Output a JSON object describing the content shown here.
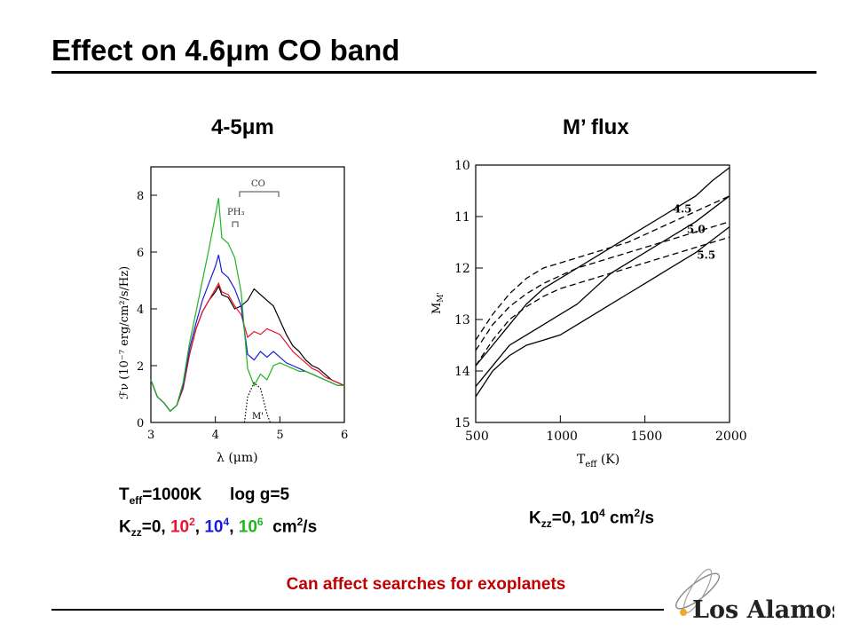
{
  "page": {
    "title_prefix": "Effect on 4.6",
    "title_mu": "μ",
    "title_suffix": "m CO band",
    "logo_text": "Los Alamos",
    "note": "Can affect searches for exoplanets"
  },
  "left_caption": {
    "line1": [
      {
        "t": "T",
        "c": "#000000"
      },
      {
        "t": "eff",
        "c": "#000000",
        "sub": true
      },
      {
        "t": "=1000K      log g=5",
        "c": "#000000"
      }
    ],
    "line2": [
      {
        "t": "K",
        "c": "#000000"
      },
      {
        "t": "zz",
        "c": "#000000",
        "sub": true
      },
      {
        "t": "=0, ",
        "c": "#000000"
      },
      {
        "t": "10",
        "c": "#e8152c"
      },
      {
        "t": "2",
        "c": "#e8152c",
        "sup": true
      },
      {
        "t": ", ",
        "c": "#000000"
      },
      {
        "t": "10",
        "c": "#1a1adc"
      },
      {
        "t": "4",
        "c": "#1a1adc",
        "sup": true
      },
      {
        "t": ", ",
        "c": "#000000"
      },
      {
        "t": "10",
        "c": "#1fb51f"
      },
      {
        "t": "6",
        "c": "#1fb51f",
        "sup": true
      },
      {
        "t": "  cm",
        "c": "#000000"
      },
      {
        "t": "2",
        "c": "#000000",
        "sup": true
      },
      {
        "t": "/s",
        "c": "#000000"
      }
    ]
  },
  "right_caption": {
    "line1": [
      {
        "t": "K",
        "c": "#000000"
      },
      {
        "t": "zz",
        "c": "#000000",
        "sub": true
      },
      {
        "t": "=0, 10",
        "c": "#000000"
      },
      {
        "t": "4",
        "c": "#000000",
        "sup": true
      },
      {
        "t": " cm",
        "c": "#000000"
      },
      {
        "t": "2",
        "c": "#000000",
        "sup": true
      },
      {
        "t": "/s",
        "c": "#000000"
      }
    ]
  },
  "chart_data": [
    {
      "type": "line",
      "title_prefix": "4-5",
      "title_mu": "μ",
      "title_suffix": "m",
      "xlabel": "λ (μm)",
      "ylabel": "ℱν (10⁻⁷ erg/cm²/s/Hz)",
      "xlim": [
        3,
        6
      ],
      "ylim": [
        0,
        9
      ],
      "xticks": [
        3,
        4,
        5,
        6
      ],
      "yticks": [
        0,
        2,
        4,
        6,
        8
      ],
      "grid": false,
      "annotations": [
        "CO",
        "PH₃",
        "M'"
      ],
      "series": [
        {
          "color": "#000000",
          "points": [
            [
              3.0,
              1.5
            ],
            [
              3.1,
              0.9
            ],
            [
              3.2,
              0.7
            ],
            [
              3.3,
              0.4
            ],
            [
              3.4,
              0.6
            ],
            [
              3.5,
              1.2
            ],
            [
              3.6,
              2.4
            ],
            [
              3.7,
              3.3
            ],
            [
              3.8,
              3.9
            ],
            [
              3.9,
              4.3
            ],
            [
              4.0,
              4.6
            ],
            [
              4.05,
              4.8
            ],
            [
              4.1,
              4.5
            ],
            [
              4.2,
              4.4
            ],
            [
              4.3,
              4.0
            ],
            [
              4.4,
              4.1
            ],
            [
              4.5,
              4.3
            ],
            [
              4.6,
              4.7
            ],
            [
              4.7,
              4.5
            ],
            [
              4.8,
              4.3
            ],
            [
              4.9,
              4.1
            ],
            [
              5.0,
              3.6
            ],
            [
              5.1,
              3.1
            ],
            [
              5.2,
              2.7
            ],
            [
              5.3,
              2.5
            ],
            [
              5.4,
              2.2
            ],
            [
              5.5,
              2.0
            ],
            [
              5.6,
              1.9
            ],
            [
              5.7,
              1.7
            ],
            [
              5.8,
              1.5
            ],
            [
              5.9,
              1.4
            ],
            [
              6.0,
              1.3
            ]
          ]
        },
        {
          "color": "#e8152c",
          "points": [
            [
              3.0,
              1.5
            ],
            [
              3.1,
              0.9
            ],
            [
              3.2,
              0.7
            ],
            [
              3.3,
              0.4
            ],
            [
              3.4,
              0.6
            ],
            [
              3.5,
              1.2
            ],
            [
              3.6,
              2.4
            ],
            [
              3.7,
              3.3
            ],
            [
              3.8,
              3.9
            ],
            [
              3.9,
              4.3
            ],
            [
              4.0,
              4.7
            ],
            [
              4.05,
              4.9
            ],
            [
              4.1,
              4.6
            ],
            [
              4.2,
              4.5
            ],
            [
              4.3,
              4.1
            ],
            [
              4.4,
              3.8
            ],
            [
              4.5,
              3.0
            ],
            [
              4.6,
              3.2
            ],
            [
              4.7,
              3.1
            ],
            [
              4.8,
              3.3
            ],
            [
              4.9,
              3.2
            ],
            [
              5.0,
              3.1
            ],
            [
              5.1,
              2.8
            ],
            [
              5.2,
              2.5
            ],
            [
              5.3,
              2.3
            ],
            [
              5.4,
              2.1
            ],
            [
              5.5,
              1.9
            ],
            [
              5.6,
              1.8
            ],
            [
              5.7,
              1.6
            ],
            [
              5.8,
              1.5
            ],
            [
              5.9,
              1.4
            ],
            [
              6.0,
              1.3
            ]
          ]
        },
        {
          "color": "#1a1adc",
          "points": [
            [
              3.0,
              1.5
            ],
            [
              3.1,
              0.9
            ],
            [
              3.2,
              0.7
            ],
            [
              3.3,
              0.4
            ],
            [
              3.4,
              0.6
            ],
            [
              3.5,
              1.3
            ],
            [
              3.6,
              2.6
            ],
            [
              3.7,
              3.5
            ],
            [
              3.8,
              4.3
            ],
            [
              3.9,
              4.9
            ],
            [
              4.0,
              5.5
            ],
            [
              4.05,
              5.9
            ],
            [
              4.1,
              5.3
            ],
            [
              4.2,
              5.1
            ],
            [
              4.3,
              4.7
            ],
            [
              4.4,
              4.1
            ],
            [
              4.5,
              2.4
            ],
            [
              4.6,
              2.2
            ],
            [
              4.7,
              2.5
            ],
            [
              4.8,
              2.3
            ],
            [
              4.9,
              2.5
            ],
            [
              5.0,
              2.3
            ],
            [
              5.1,
              2.1
            ],
            [
              5.2,
              2.0
            ],
            [
              5.3,
              1.9
            ],
            [
              5.4,
              1.8
            ],
            [
              5.5,
              1.7
            ],
            [
              5.6,
              1.6
            ],
            [
              5.7,
              1.5
            ],
            [
              5.8,
              1.4
            ],
            [
              5.9,
              1.3
            ],
            [
              6.0,
              1.3
            ]
          ]
        },
        {
          "color": "#1fb51f",
          "points": [
            [
              3.0,
              1.5
            ],
            [
              3.1,
              0.9
            ],
            [
              3.2,
              0.7
            ],
            [
              3.3,
              0.4
            ],
            [
              3.4,
              0.6
            ],
            [
              3.5,
              1.4
            ],
            [
              3.6,
              2.8
            ],
            [
              3.7,
              3.9
            ],
            [
              3.8,
              5.0
            ],
            [
              3.9,
              6.1
            ],
            [
              4.0,
              7.3
            ],
            [
              4.05,
              7.9
            ],
            [
              4.1,
              6.5
            ],
            [
              4.2,
              6.3
            ],
            [
              4.3,
              5.8
            ],
            [
              4.4,
              4.6
            ],
            [
              4.5,
              1.9
            ],
            [
              4.6,
              1.3
            ],
            [
              4.7,
              1.7
            ],
            [
              4.8,
              1.5
            ],
            [
              4.9,
              2.0
            ],
            [
              5.0,
              2.1
            ],
            [
              5.1,
              2.0
            ],
            [
              5.2,
              1.9
            ],
            [
              5.3,
              1.8
            ],
            [
              5.4,
              1.8
            ],
            [
              5.5,
              1.7
            ],
            [
              5.6,
              1.6
            ],
            [
              5.7,
              1.5
            ],
            [
              5.8,
              1.4
            ],
            [
              5.9,
              1.3
            ],
            [
              6.0,
              1.3
            ]
          ]
        },
        {
          "color": "#000000",
          "dash": "dotted",
          "points": [
            [
              4.45,
              0
            ],
            [
              4.5,
              0.9
            ],
            [
              4.6,
              1.4
            ],
            [
              4.7,
              1.2
            ],
            [
              4.8,
              0.3
            ],
            [
              4.85,
              0
            ]
          ]
        }
      ]
    },
    {
      "type": "line",
      "title": "M’ flux",
      "xlabel": "T",
      "xlabel_sub": "eff",
      "xlabel_suffix": " (K)",
      "ylabel": "M",
      "ylabel_sub": "M'",
      "xlim": [
        500,
        2000
      ],
      "ylim": [
        15,
        10
      ],
      "xticks": [
        500,
        1000,
        1500,
        2000
      ],
      "yticks": [
        10,
        11,
        12,
        13,
        14,
        15
      ],
      "grid": false,
      "annotations": [
        {
          "text": "4.5",
          "x": 1720,
          "y": 10.85
        },
        {
          "text": "5.0",
          "x": 1800,
          "y": 11.25
        },
        {
          "text": "5.5",
          "x": 1860,
          "y": 11.75
        }
      ],
      "series": [
        {
          "name": "4.5",
          "dash": "solid",
          "points": [
            [
              500,
              13.9
            ],
            [
              600,
              13.5
            ],
            [
              700,
              13.1
            ],
            [
              800,
              12.7
            ],
            [
              900,
              12.4
            ],
            [
              1000,
              12.2
            ],
            [
              1100,
              12.0
            ],
            [
              1200,
              11.8
            ],
            [
              1300,
              11.6
            ],
            [
              1400,
              11.4
            ],
            [
              1500,
              11.2
            ],
            [
              1600,
              11.0
            ],
            [
              1700,
              10.8
            ],
            [
              1800,
              10.6
            ],
            [
              1900,
              10.3
            ],
            [
              2000,
              10.05
            ]
          ]
        },
        {
          "name": "5.0",
          "dash": "solid",
          "points": [
            [
              500,
              14.3
            ],
            [
              600,
              13.9
            ],
            [
              700,
              13.5
            ],
            [
              800,
              13.3
            ],
            [
              900,
              13.1
            ],
            [
              1000,
              12.9
            ],
            [
              1100,
              12.7
            ],
            [
              1200,
              12.4
            ],
            [
              1300,
              12.1
            ],
            [
              1400,
              11.9
            ],
            [
              1500,
              11.7
            ],
            [
              1600,
              11.5
            ],
            [
              1700,
              11.3
            ],
            [
              1800,
              11.1
            ],
            [
              1900,
              10.85
            ],
            [
              2000,
              10.6
            ]
          ]
        },
        {
          "name": "5.5",
          "dash": "solid",
          "points": [
            [
              500,
              14.5
            ],
            [
              600,
              14.0
            ],
            [
              700,
              13.7
            ],
            [
              800,
              13.5
            ],
            [
              900,
              13.4
            ],
            [
              1000,
              13.3
            ],
            [
              1100,
              13.1
            ],
            [
              1200,
              12.9
            ],
            [
              1300,
              12.7
            ],
            [
              1400,
              12.5
            ],
            [
              1500,
              12.3
            ],
            [
              1600,
              12.1
            ],
            [
              1700,
              11.9
            ],
            [
              1800,
              11.7
            ],
            [
              1900,
              11.45
            ],
            [
              2000,
              11.2
            ]
          ]
        },
        {
          "name": "4.5",
          "dash": "dashed",
          "points": [
            [
              500,
              13.4
            ],
            [
              600,
              12.9
            ],
            [
              700,
              12.5
            ],
            [
              800,
              12.2
            ],
            [
              900,
              12.0
            ],
            [
              1000,
              11.9
            ],
            [
              1100,
              11.8
            ],
            [
              1200,
              11.7
            ],
            [
              1300,
              11.6
            ],
            [
              1400,
              11.5
            ],
            [
              1500,
              11.35
            ],
            [
              1600,
              11.2
            ],
            [
              1700,
              11.05
            ],
            [
              1800,
              10.9
            ],
            [
              1900,
              10.75
            ],
            [
              2000,
              10.6
            ]
          ]
        },
        {
          "name": "5.0",
          "dash": "dashed",
          "points": [
            [
              500,
              13.6
            ],
            [
              600,
              13.1
            ],
            [
              700,
              12.75
            ],
            [
              800,
              12.5
            ],
            [
              900,
              12.3
            ],
            [
              1000,
              12.15
            ],
            [
              1100,
              12.0
            ],
            [
              1200,
              11.9
            ],
            [
              1300,
              11.8
            ],
            [
              1400,
              11.7
            ],
            [
              1500,
              11.6
            ],
            [
              1600,
              11.5
            ],
            [
              1700,
              11.4
            ],
            [
              1800,
              11.3
            ],
            [
              1900,
              11.2
            ],
            [
              2000,
              11.1
            ]
          ]
        },
        {
          "name": "5.5",
          "dash": "dashed",
          "points": [
            [
              500,
              13.9
            ],
            [
              600,
              13.4
            ],
            [
              700,
              13.0
            ],
            [
              800,
              12.75
            ],
            [
              900,
              12.55
            ],
            [
              1000,
              12.4
            ],
            [
              1100,
              12.3
            ],
            [
              1200,
              12.2
            ],
            [
              1300,
              12.1
            ],
            [
              1400,
              12.0
            ],
            [
              1500,
              11.9
            ],
            [
              1600,
              11.8
            ],
            [
              1700,
              11.7
            ],
            [
              1800,
              11.6
            ],
            [
              1900,
              11.5
            ],
            [
              2000,
              11.4
            ]
          ]
        }
      ]
    }
  ]
}
